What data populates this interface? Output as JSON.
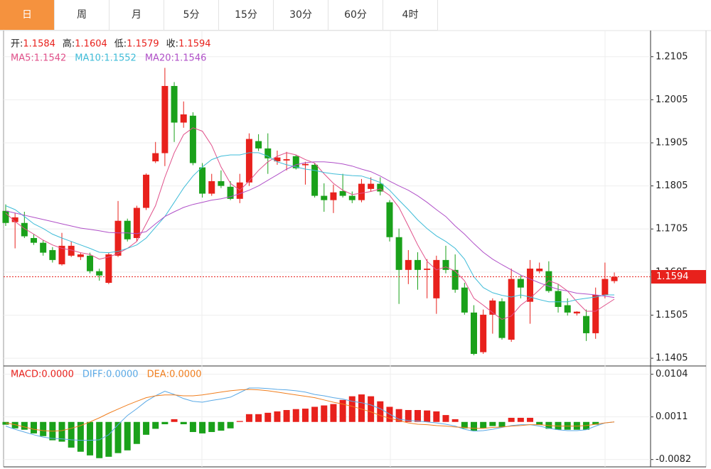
{
  "tabs": [
    "日",
    "周",
    "月",
    "5分",
    "15分",
    "30分",
    "60分",
    "4时"
  ],
  "active_tab": 0,
  "chart_data": [
    {
      "type": "candlestick",
      "header_labels": [
        "开:",
        "高:",
        "低:",
        "收:"
      ],
      "separator": ": ",
      "up_color": "#e8211c",
      "down_color": "#1aa11a",
      "open": [
        1.1747,
        1.1721,
        1.1719,
        1.1684,
        1.1673,
        1.1656,
        1.1623,
        1.1643,
        1.164,
        1.1643,
        1.1607,
        1.158,
        1.1643,
        1.1724,
        1.1684,
        1.1754,
        1.1862,
        1.1881,
        1.2037,
        1.1952,
        1.1968,
        1.1848,
        1.1787,
        1.1816,
        1.1803,
        1.1775,
        1.1813,
        1.1909,
        1.1892,
        1.1862,
        1.1864,
        1.1874,
        1.1853,
        1.1854,
        1.1782,
        1.1772,
        1.1793,
        1.1782,
        1.1772,
        1.1798,
        1.181,
        1.1767,
        1.1686,
        1.161,
        1.1633,
        1.161,
        1.1544,
        1.1633,
        1.161,
        1.1569,
        1.1511,
        1.1419,
        1.1506,
        1.1537,
        1.1448,
        1.1589,
        1.1536,
        1.1607,
        1.1607,
        1.1561,
        1.1528,
        1.1509,
        1.1503,
        1.1463,
        1.1552,
        1.1584
      ],
      "high": [
        1.1762,
        1.1742,
        1.1745,
        1.1693,
        1.1679,
        1.1663,
        1.1696,
        1.1676,
        1.165,
        1.165,
        1.1613,
        1.1651,
        1.177,
        1.1729,
        1.1759,
        1.1834,
        1.1907,
        1.2079,
        1.2046,
        1.2001,
        1.1976,
        1.1858,
        1.1833,
        1.1841,
        1.1816,
        1.1833,
        1.1927,
        1.1925,
        1.1927,
        1.1887,
        1.1884,
        1.1877,
        1.1861,
        1.1858,
        1.1811,
        1.1808,
        1.1833,
        1.1792,
        1.1821,
        1.1825,
        1.1825,
        1.1772,
        1.1706,
        1.1656,
        1.1651,
        1.1635,
        1.1643,
        1.1666,
        1.1646,
        1.158,
        1.1528,
        1.1518,
        1.1544,
        1.1544,
        1.1613,
        1.1597,
        1.1633,
        1.1627,
        1.163,
        1.1577,
        1.1544,
        1.1514,
        1.1518,
        1.1569,
        1.1627,
        1.1604
      ],
      "low": [
        1.1712,
        1.166,
        1.1684,
        1.1668,
        1.1643,
        1.1627,
        1.162,
        1.164,
        1.1633,
        1.1602,
        1.1585,
        1.1577,
        1.164,
        1.1676,
        1.1676,
        1.1749,
        1.1858,
        1.1851,
        1.1907,
        1.194,
        1.1853,
        1.1778,
        1.1782,
        1.18,
        1.1772,
        1.1765,
        1.1805,
        1.1886,
        1.1833,
        1.1854,
        1.1841,
        1.1843,
        1.1808,
        1.1778,
        1.1745,
        1.1742,
        1.1778,
        1.1765,
        1.1767,
        1.1792,
        1.1783,
        1.1676,
        1.1531,
        1.1577,
        1.1564,
        1.1544,
        1.1508,
        1.1602,
        1.1557,
        1.1506,
        1.1412,
        1.1415,
        1.1462,
        1.1448,
        1.1443,
        1.1544,
        1.1485,
        1.1602,
        1.1557,
        1.1511,
        1.1504,
        1.1504,
        1.1445,
        1.145,
        1.1544,
        1.1579
      ],
      "close": [
        1.1719,
        1.1732,
        1.1688,
        1.1673,
        1.165,
        1.1633,
        1.1666,
        1.1666,
        1.1646,
        1.1607,
        1.1597,
        1.1646,
        1.1724,
        1.1681,
        1.1754,
        1.1831,
        1.1881,
        1.2037,
        1.1952,
        1.1971,
        1.1858,
        1.1787,
        1.1816,
        1.1805,
        1.1775,
        1.1813,
        1.1914,
        1.1892,
        1.1869,
        1.1871,
        1.1867,
        1.1846,
        1.1856,
        1.1782,
        1.1772,
        1.179,
        1.1782,
        1.1772,
        1.181,
        1.181,
        1.1792,
        1.1686,
        1.161,
        1.1633,
        1.161,
        1.1613,
        1.1633,
        1.161,
        1.1564,
        1.1511,
        1.1415,
        1.1506,
        1.1539,
        1.1452,
        1.1589,
        1.1569,
        1.1613,
        1.1613,
        1.1561,
        1.1524,
        1.1511,
        1.1513,
        1.1463,
        1.1552,
        1.1589,
        1.1594
      ],
      "series": [
        {
          "name": "MA5",
          "color": "#e0508a",
          "values": [
            1.1742,
            1.1722,
            1.1706,
            1.1693,
            1.1679,
            1.1668,
            1.166,
            1.1656,
            1.165,
            1.1646,
            1.1635,
            1.164,
            1.1648,
            1.166,
            1.1676,
            1.1717,
            1.1759,
            1.1825,
            1.1882,
            1.1924,
            1.194,
            1.1932,
            1.1899,
            1.1849,
            1.1811,
            1.1795,
            1.1816,
            1.1841,
            1.1861,
            1.1874,
            1.1882,
            1.1877,
            1.1866,
            1.1858,
            1.1833,
            1.1811,
            1.1795,
            1.1785,
            1.1788,
            1.1792,
            1.1798,
            1.1783,
            1.1755,
            1.1712,
            1.1668,
            1.163,
            1.161,
            1.1617,
            1.1607,
            1.1585,
            1.1544,
            1.1528,
            1.1511,
            1.1495,
            1.1503,
            1.1528,
            1.1544,
            1.1564,
            1.1585,
            1.1577,
            1.1561,
            1.1536,
            1.1514,
            1.1514,
            1.1528,
            1.1542
          ]
        },
        {
          "name": "MA10",
          "color": "#3fbcd8",
          "values": [
            1.1759,
            1.175,
            1.1734,
            1.1717,
            1.1706,
            1.1693,
            1.1684,
            1.1676,
            1.1668,
            1.166,
            1.1651,
            1.165,
            1.1653,
            1.166,
            1.1668,
            1.1684,
            1.1709,
            1.1734,
            1.1767,
            1.18,
            1.1828,
            1.1849,
            1.1866,
            1.1874,
            1.1877,
            1.1877,
            1.1882,
            1.1882,
            1.1874,
            1.1861,
            1.1854,
            1.1849,
            1.1844,
            1.1841,
            1.1836,
            1.1833,
            1.1831,
            1.1829,
            1.1828,
            1.1821,
            1.1813,
            1.1795,
            1.1772,
            1.175,
            1.1726,
            1.1706,
            1.1689,
            1.1676,
            1.166,
            1.1635,
            1.1594,
            1.1569,
            1.1557,
            1.1551,
            1.1547,
            1.1552,
            1.1547,
            1.1541,
            1.1536,
            1.1536,
            1.1536,
            1.1541,
            1.1544,
            1.1547,
            1.1552,
            1.1552
          ]
        },
        {
          "name": "MA20",
          "color": "#b050c8",
          "values": [
            1.1747,
            1.1742,
            1.1737,
            1.1732,
            1.1727,
            1.1722,
            1.1717,
            1.1712,
            1.1707,
            1.1704,
            1.1701,
            1.1697,
            1.1696,
            1.1696,
            1.1694,
            1.1699,
            1.1717,
            1.1734,
            1.1745,
            1.1755,
            1.1762,
            1.1767,
            1.1772,
            1.1775,
            1.178,
            1.1787,
            1.1795,
            1.1805,
            1.1818,
            1.1831,
            1.1844,
            1.1854,
            1.1859,
            1.1861,
            1.1861,
            1.1859,
            1.1856,
            1.1851,
            1.1844,
            1.1838,
            1.1828,
            1.1816,
            1.1805,
            1.1795,
            1.1782,
            1.1767,
            1.175,
            1.1734,
            1.1712,
            1.1693,
            1.1671,
            1.1651,
            1.1635,
            1.1622,
            1.161,
            1.1598,
            1.1589,
            1.158,
            1.1572,
            1.1565,
            1.1561,
            1.1556,
            1.1554,
            1.1552,
            1.1549,
            1.1546
          ]
        }
      ],
      "last_price": 1.1594,
      "ylim": [
        1.1387,
        1.2164
      ],
      "yticks": [
        1.1405,
        1.1505,
        1.1605,
        1.1705,
        1.1805,
        1.1905,
        1.2005,
        1.2105
      ],
      "grid": true
    },
    {
      "type": "macd",
      "separator": ": ",
      "up_color": "#e8211c",
      "down_color": "#1aa11a",
      "series": [
        {
          "name": "MACD",
          "color": "#e8211c",
          "current": "0.0000",
          "values": [
            -0.0006,
            -0.0014,
            -0.0017,
            -0.0025,
            -0.0031,
            -0.004,
            -0.0043,
            -0.0056,
            -0.0065,
            -0.0073,
            -0.0079,
            -0.0076,
            -0.0068,
            -0.0062,
            -0.0048,
            -0.0028,
            -0.0015,
            -0.0005,
            0.0006,
            -0.0005,
            -0.0022,
            -0.0025,
            -0.0022,
            -0.0019,
            -0.0014,
            0.0002,
            0.0017,
            0.0017,
            0.002,
            0.0023,
            0.0026,
            0.0028,
            0.0029,
            0.0033,
            0.0036,
            0.0039,
            0.0048,
            0.0056,
            0.006,
            0.0056,
            0.0045,
            0.0033,
            0.0028,
            0.0026,
            0.0026,
            0.0025,
            0.0023,
            0.0015,
            0.0006,
            -0.0014,
            -0.0019,
            -0.0014,
            -0.0009,
            -0.0011,
            0.0009,
            0.0009,
            0.0009,
            -0.0006,
            -0.0015,
            -0.0017,
            -0.0017,
            -0.0017,
            -0.0017,
            -0.0006,
            0,
            0
          ]
        },
        {
          "name": "DIFF",
          "color": "#5aa9e6",
          "current": "0.0000",
          "values": [
            -0.0009,
            -0.0016,
            -0.0022,
            -0.0028,
            -0.0033,
            -0.0036,
            -0.0037,
            -0.0039,
            -0.004,
            -0.004,
            -0.0039,
            -0.0028,
            -0.0006,
            0.0014,
            0.0029,
            0.0045,
            0.0057,
            0.0067,
            0.006,
            0.0051,
            0.0045,
            0.0043,
            0.0047,
            0.005,
            0.0054,
            0.0064,
            0.0074,
            0.0074,
            0.0073,
            0.0071,
            0.007,
            0.0068,
            0.0065,
            0.006,
            0.0057,
            0.0053,
            0.005,
            0.0045,
            0.0042,
            0.0037,
            0.0029,
            0.0017,
            0.0006,
            0.0003,
            0.0002,
            0,
            -0.0002,
            -0.0005,
            -0.0009,
            -0.0016,
            -0.002,
            -0.0019,
            -0.0016,
            -0.0012,
            -0.0008,
            -0.0006,
            -0.0006,
            -0.0009,
            -0.0014,
            -0.0017,
            -0.0019,
            -0.0019,
            -0.0017,
            -0.0009,
            -0.0002,
            0
          ]
        },
        {
          "name": "DEA",
          "color": "#f07e1e",
          "current": "0.0000",
          "values": [
            -0.0002,
            -0.0006,
            -0.0011,
            -0.0016,
            -0.0019,
            -0.002,
            -0.0019,
            -0.0014,
            -0.0008,
            0,
            0.0009,
            0.0019,
            0.0028,
            0.0037,
            0.0045,
            0.0053,
            0.0057,
            0.0059,
            0.0059,
            0.0057,
            0.0057,
            0.0059,
            0.0062,
            0.0065,
            0.0068,
            0.007,
            0.0071,
            0.007,
            0.0068,
            0.0065,
            0.0062,
            0.0059,
            0.0056,
            0.0053,
            0.0048,
            0.0043,
            0.0039,
            0.0034,
            0.0028,
            0.0022,
            0.0014,
            0.0008,
            0.0003,
            -0.0002,
            -0.0005,
            -0.0006,
            -0.0008,
            -0.0009,
            -0.0011,
            -0.0012,
            -0.0014,
            -0.0014,
            -0.0012,
            -0.0011,
            -0.0009,
            -0.0008,
            -0.0006,
            -0.0006,
            -0.0008,
            -0.0009,
            -0.0009,
            -0.0009,
            -0.0008,
            -0.0005,
            -0.0002,
            0
          ]
        }
      ],
      "ylim": [
        -0.0098,
        0.0119
      ],
      "yticks": [
        -0.0082,
        0.0011,
        0.0104
      ],
      "grid": true
    }
  ]
}
